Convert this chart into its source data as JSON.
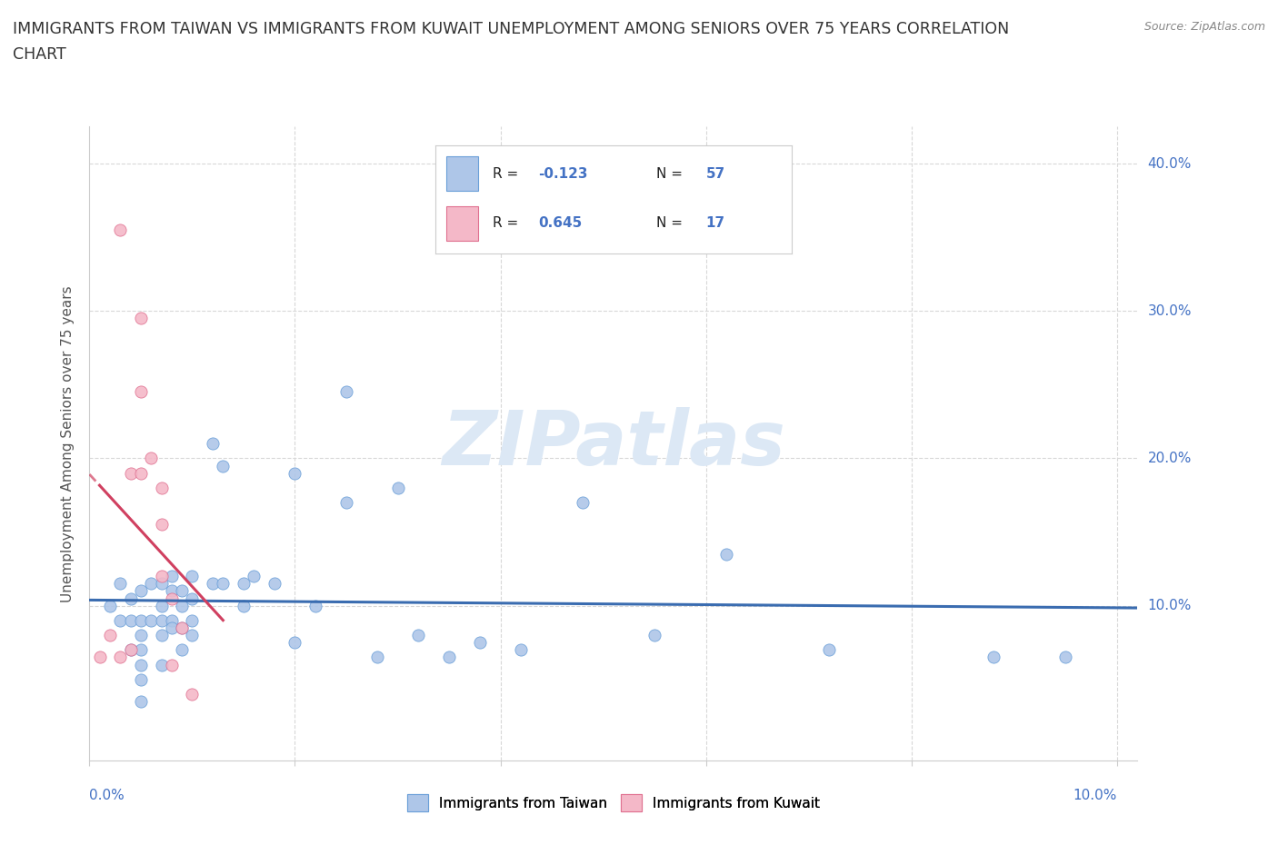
{
  "title_line1": "IMMIGRANTS FROM TAIWAN VS IMMIGRANTS FROM KUWAIT UNEMPLOYMENT AMONG SENIORS OVER 75 YEARS CORRELATION",
  "title_line2": "CHART",
  "source": "Source: ZipAtlas.com",
  "ylabel": "Unemployment Among Seniors over 75 years",
  "yticks": [
    0.0,
    0.1,
    0.2,
    0.3,
    0.4
  ],
  "ytick_labels": [
    "",
    "10.0%",
    "20.0%",
    "30.0%",
    "40.0%"
  ],
  "xlim": [
    0.0,
    0.102
  ],
  "ylim": [
    -0.005,
    0.425
  ],
  "taiwan_R": -0.123,
  "taiwan_N": 57,
  "kuwait_R": 0.645,
  "kuwait_N": 17,
  "taiwan_color": "#aec6e8",
  "taiwan_edge_color": "#6a9fd8",
  "taiwan_line_color": "#3a6cb0",
  "kuwait_color": "#f4b8c8",
  "kuwait_edge_color": "#e07090",
  "kuwait_line_color": "#d04060",
  "watermark_color": "#dce8f5",
  "grid_color": "#d8d8d8",
  "background_color": "#ffffff",
  "title_fontsize": 12.5,
  "axis_label_fontsize": 11,
  "tick_label_color": "#4472c4",
  "taiwan_x": [
    0.002,
    0.003,
    0.003,
    0.004,
    0.004,
    0.004,
    0.005,
    0.005,
    0.005,
    0.005,
    0.005,
    0.005,
    0.005,
    0.006,
    0.006,
    0.007,
    0.007,
    0.007,
    0.007,
    0.007,
    0.008,
    0.008,
    0.008,
    0.008,
    0.009,
    0.009,
    0.009,
    0.009,
    0.01,
    0.01,
    0.01,
    0.01,
    0.012,
    0.012,
    0.013,
    0.013,
    0.015,
    0.015,
    0.016,
    0.018,
    0.02,
    0.02,
    0.022,
    0.025,
    0.025,
    0.028,
    0.03,
    0.032,
    0.035,
    0.038,
    0.042,
    0.048,
    0.055,
    0.062,
    0.072,
    0.088,
    0.095
  ],
  "taiwan_y": [
    0.1,
    0.115,
    0.09,
    0.105,
    0.09,
    0.07,
    0.11,
    0.09,
    0.08,
    0.07,
    0.06,
    0.05,
    0.035,
    0.115,
    0.09,
    0.115,
    0.1,
    0.09,
    0.08,
    0.06,
    0.12,
    0.11,
    0.09,
    0.085,
    0.11,
    0.1,
    0.085,
    0.07,
    0.12,
    0.105,
    0.09,
    0.08,
    0.21,
    0.115,
    0.195,
    0.115,
    0.115,
    0.1,
    0.12,
    0.115,
    0.19,
    0.075,
    0.1,
    0.245,
    0.17,
    0.065,
    0.18,
    0.08,
    0.065,
    0.075,
    0.07,
    0.17,
    0.08,
    0.135,
    0.07,
    0.065,
    0.065
  ],
  "kuwait_x": [
    0.001,
    0.002,
    0.003,
    0.003,
    0.004,
    0.004,
    0.005,
    0.005,
    0.005,
    0.006,
    0.007,
    0.007,
    0.007,
    0.008,
    0.008,
    0.009,
    0.01
  ],
  "kuwait_y": [
    0.065,
    0.08,
    0.355,
    0.065,
    0.19,
    0.07,
    0.295,
    0.245,
    0.19,
    0.2,
    0.18,
    0.155,
    0.12,
    0.105,
    0.06,
    0.085,
    0.04
  ]
}
